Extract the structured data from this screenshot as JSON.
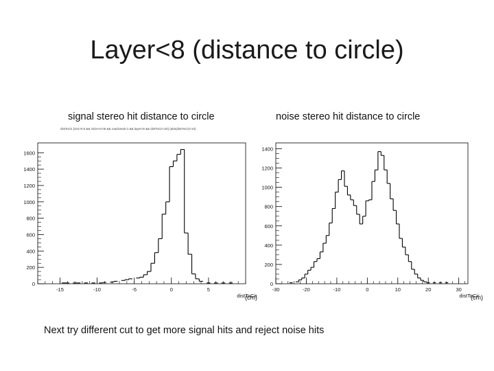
{
  "slide": {
    "title": "Layer<8 (distance to circle)",
    "footer": "Next try different cut to get  more signal hits and reject noise hits",
    "stats_box": "distToCir {sim>0.5 && rSize<0.05 && roadUsed<1 && layer<8 && distToCir<20} (abs(distToCir)<10)"
  },
  "chart_data": [
    {
      "type": "bar",
      "title": "signal stereo hit distance to circle",
      "xlabel": "distToCir",
      "x_unit": "(cm)",
      "xlim": [
        -18,
        10
      ],
      "ylim": [
        0,
        1720
      ],
      "xticks": [
        -15,
        -10,
        -5,
        0,
        5
      ],
      "yticks": [
        0,
        200,
        400,
        600,
        800,
        1000,
        1200,
        1400,
        1600
      ],
      "bin_width": 0.5,
      "bins": [
        {
          "x": -14.5,
          "y": 10
        },
        {
          "x": -14.0,
          "y": 10
        },
        {
          "x": -13.0,
          "y": 10
        },
        {
          "x": -12.5,
          "y": 10
        },
        {
          "x": -11.5,
          "y": 10
        },
        {
          "x": -10.5,
          "y": 10
        },
        {
          "x": -9.5,
          "y": 10
        },
        {
          "x": -9.0,
          "y": 15
        },
        {
          "x": -8.0,
          "y": 20
        },
        {
          "x": -7.5,
          "y": 30
        },
        {
          "x": -6.5,
          "y": 40
        },
        {
          "x": -6.0,
          "y": 50
        },
        {
          "x": -5.5,
          "y": 60
        },
        {
          "x": -4.5,
          "y": 70
        },
        {
          "x": -4.0,
          "y": 80
        },
        {
          "x": -3.5,
          "y": 110
        },
        {
          "x": -3.0,
          "y": 150
        },
        {
          "x": -2.5,
          "y": 250
        },
        {
          "x": -2.0,
          "y": 380
        },
        {
          "x": -1.5,
          "y": 550
        },
        {
          "x": -1.0,
          "y": 850
        },
        {
          "x": -0.5,
          "y": 1000
        },
        {
          "x": 0.0,
          "y": 1430
        },
        {
          "x": 0.5,
          "y": 1500
        },
        {
          "x": 1.0,
          "y": 1580
        },
        {
          "x": 1.5,
          "y": 1640
        },
        {
          "x": 2.0,
          "y": 620
        },
        {
          "x": 2.5,
          "y": 360
        },
        {
          "x": 3.0,
          "y": 120
        },
        {
          "x": 3.5,
          "y": 60
        },
        {
          "x": 4.0,
          "y": 30
        },
        {
          "x": 5.0,
          "y": 10
        },
        {
          "x": 6.0,
          "y": 10
        },
        {
          "x": 7.0,
          "y": 10
        },
        {
          "x": 8.0,
          "y": 10
        }
      ]
    },
    {
      "type": "bar",
      "title": "noise stereo hit distance to circle",
      "xlabel": "distToCir",
      "x_unit": "(cm)",
      "xlim": [
        -30,
        33
      ],
      "ylim": [
        0,
        1460
      ],
      "xticks": [
        -30,
        -20,
        -10,
        0,
        10,
        20,
        30
      ],
      "yticks": [
        0,
        200,
        400,
        600,
        800,
        1000,
        1200,
        1400
      ],
      "bin_width": 1,
      "bins": [
        {
          "x": -25,
          "y": 10
        },
        {
          "x": -23,
          "y": 20
        },
        {
          "x": -22,
          "y": 40
        },
        {
          "x": -21,
          "y": 60
        },
        {
          "x": -20,
          "y": 100
        },
        {
          "x": -19,
          "y": 140
        },
        {
          "x": -18,
          "y": 170
        },
        {
          "x": -17,
          "y": 230
        },
        {
          "x": -16,
          "y": 260
        },
        {
          "x": -15,
          "y": 330
        },
        {
          "x": -14,
          "y": 420
        },
        {
          "x": -13,
          "y": 500
        },
        {
          "x": -12,
          "y": 630
        },
        {
          "x": -11,
          "y": 780
        },
        {
          "x": -10,
          "y": 950
        },
        {
          "x": -9,
          "y": 1080
        },
        {
          "x": -8,
          "y": 1170
        },
        {
          "x": -7,
          "y": 1010
        },
        {
          "x": -6,
          "y": 920
        },
        {
          "x": -5,
          "y": 870
        },
        {
          "x": -4,
          "y": 810
        },
        {
          "x": -3,
          "y": 720
        },
        {
          "x": -2,
          "y": 620
        },
        {
          "x": -1,
          "y": 700
        },
        {
          "x": 0,
          "y": 860
        },
        {
          "x": 1,
          "y": 870
        },
        {
          "x": 2,
          "y": 1060
        },
        {
          "x": 3,
          "y": 1180
        },
        {
          "x": 4,
          "y": 1370
        },
        {
          "x": 5,
          "y": 1330
        },
        {
          "x": 6,
          "y": 1180
        },
        {
          "x": 7,
          "y": 1040
        },
        {
          "x": 8,
          "y": 880
        },
        {
          "x": 9,
          "y": 760
        },
        {
          "x": 10,
          "y": 620
        },
        {
          "x": 11,
          "y": 470
        },
        {
          "x": 12,
          "y": 380
        },
        {
          "x": 13,
          "y": 300
        },
        {
          "x": 14,
          "y": 230
        },
        {
          "x": 15,
          "y": 150
        },
        {
          "x": 16,
          "y": 100
        },
        {
          "x": 17,
          "y": 60
        },
        {
          "x": 18,
          "y": 35
        },
        {
          "x": 19,
          "y": 20
        },
        {
          "x": 20,
          "y": 10
        },
        {
          "x": 22,
          "y": 10
        },
        {
          "x": 24,
          "y": 10
        },
        {
          "x": 26,
          "y": 10
        }
      ]
    }
  ]
}
